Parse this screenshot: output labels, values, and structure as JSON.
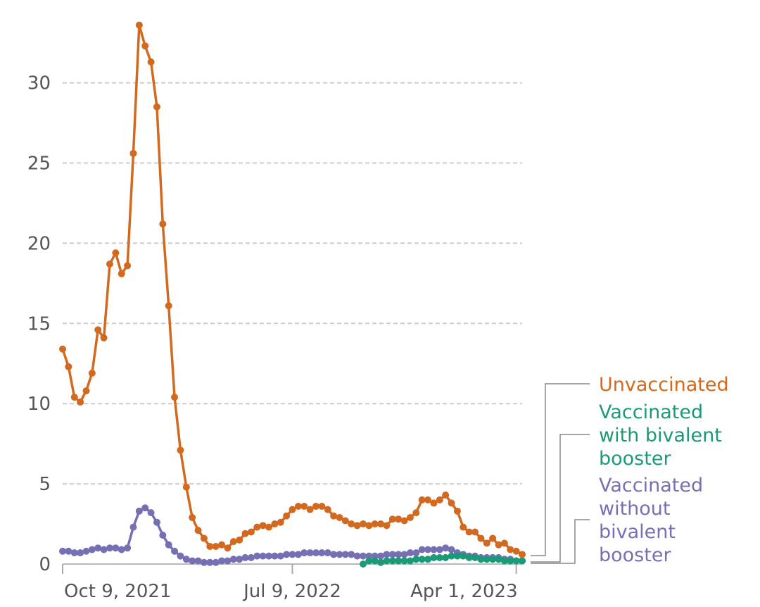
{
  "chart_data": {
    "type": "line",
    "title": "",
    "xlabel": "",
    "ylabel": "",
    "ylim": [
      0,
      35
    ],
    "yticks": [
      0,
      5,
      10,
      15,
      20,
      25,
      30
    ],
    "y_tick_labels": [
      "0",
      "5",
      "10",
      "15",
      "20",
      "25",
      "30"
    ],
    "x_ticks": [
      "Oct 9, 2021",
      "Jul 9, 2022",
      "Apr 1, 2023"
    ],
    "grid": "horizontal dashed",
    "legend_placement": "right, labels at line ends",
    "start_week": "Oct 9, 2021",
    "series": [
      {
        "name": "Unvaccinated",
        "color": "#d2691e",
        "values": [
          13.4,
          12.3,
          10.4,
          10.1,
          10.8,
          11.9,
          14.6,
          14.1,
          18.7,
          19.4,
          18.1,
          18.6,
          25.6,
          33.6,
          32.3,
          31.3,
          28.5,
          21.2,
          16.1,
          10.4,
          7.1,
          4.8,
          2.9,
          2.1,
          1.6,
          1.1,
          1.1,
          1.2,
          1.0,
          1.4,
          1.5,
          1.9,
          2.0,
          2.3,
          2.4,
          2.3,
          2.5,
          2.6,
          3.0,
          3.4,
          3.6,
          3.6,
          3.4,
          3.6,
          3.6,
          3.4,
          3.0,
          2.9,
          2.7,
          2.5,
          2.4,
          2.5,
          2.4,
          2.5,
          2.5,
          2.4,
          2.8,
          2.8,
          2.7,
          2.9,
          3.2,
          4.0,
          4.0,
          3.8,
          4.0,
          4.3,
          3.8,
          3.3,
          2.3,
          2.0,
          2.0,
          1.6,
          1.3,
          1.6,
          1.2,
          1.3,
          0.9,
          0.8,
          0.6
        ]
      },
      {
        "name": "Vaccinated with bivalent booster",
        "color": "#1a9a78",
        "start_index": 51,
        "values": [
          0.0,
          0.2,
          0.2,
          0.1,
          0.2,
          0.2,
          0.2,
          0.2,
          0.2,
          0.3,
          0.3,
          0.3,
          0.4,
          0.4,
          0.4,
          0.5,
          0.5,
          0.5,
          0.4,
          0.4,
          0.3,
          0.3,
          0.3,
          0.3,
          0.2,
          0.2,
          0.2,
          0.2
        ]
      },
      {
        "name": "Vaccinated without bivalent booster",
        "color": "#7570b3",
        "values": [
          0.8,
          0.8,
          0.7,
          0.7,
          0.8,
          0.9,
          1.0,
          0.9,
          1.0,
          1.0,
          0.9,
          1.0,
          2.3,
          3.3,
          3.5,
          3.2,
          2.6,
          1.8,
          1.2,
          0.8,
          0.5,
          0.3,
          0.2,
          0.2,
          0.1,
          0.1,
          0.1,
          0.2,
          0.2,
          0.3,
          0.3,
          0.4,
          0.4,
          0.5,
          0.5,
          0.5,
          0.5,
          0.5,
          0.6,
          0.6,
          0.6,
          0.7,
          0.7,
          0.7,
          0.7,
          0.7,
          0.6,
          0.6,
          0.6,
          0.6,
          0.5,
          0.5,
          0.5,
          0.5,
          0.5,
          0.6,
          0.6,
          0.6,
          0.6,
          0.7,
          0.7,
          0.9,
          0.9,
          0.9,
          0.9,
          1.0,
          0.9,
          0.7,
          0.6,
          0.5,
          0.5,
          0.4,
          0.4,
          0.4,
          0.4,
          0.3,
          0.3,
          0.2,
          0.2
        ]
      }
    ]
  },
  "legend": {
    "unvaccinated": [
      "Unvaccinated"
    ],
    "bivalent": [
      "Vaccinated",
      "with bivalent",
      "booster"
    ],
    "no_bivalent": [
      "Vaccinated",
      "without",
      "bivalent",
      "booster"
    ]
  }
}
